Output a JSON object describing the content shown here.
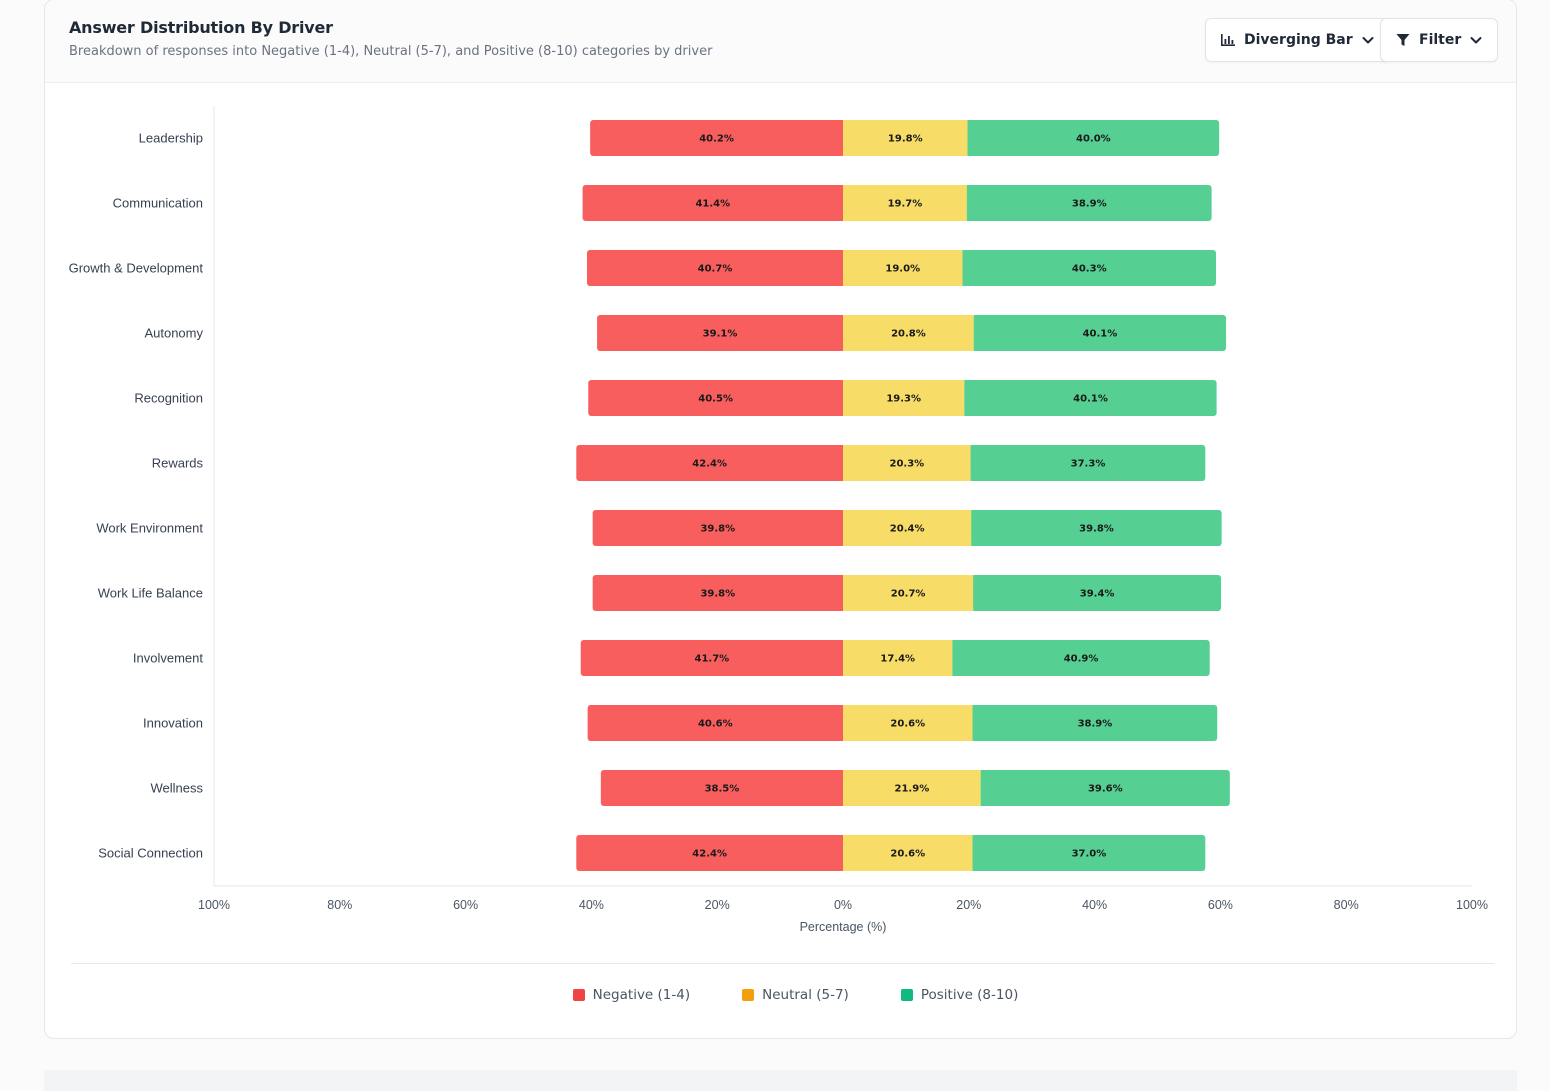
{
  "header": {
    "title": "Answer Distribution By Driver",
    "subtitle": "Breakdown of responses into Negative (1-4), Neutral (5-7), and Positive (8-10) categories by driver",
    "chart_type_button": "Diverging Bar",
    "filter_button": "Filter"
  },
  "colors": {
    "negative": "#f85e5e",
    "neutral": "#f7dd68",
    "positive": "#56cf93",
    "legend_negative": "#ef4444",
    "legend_neutral": "#f59e0b",
    "legend_positive": "#10b981"
  },
  "icons": {
    "chart_type": "bar-chart-icon",
    "filter": "funnel-icon",
    "dropdown": "chevron-down-icon"
  },
  "legend": {
    "negative": "Negative (1-4)",
    "neutral": "Neutral (5-7)",
    "positive": "Positive (8-10)"
  },
  "chart_data": {
    "type": "bar",
    "orientation": "horizontal-diverging",
    "categories": [
      "Leadership",
      "Communication",
      "Growth & Development",
      "Autonomy",
      "Recognition",
      "Rewards",
      "Work Environment",
      "Work Life Balance",
      "Involvement",
      "Innovation",
      "Wellness",
      "Social Connection"
    ],
    "series": [
      {
        "name": "Negative (1-4)",
        "values": [
          40.2,
          41.4,
          40.7,
          39.1,
          40.5,
          42.4,
          39.8,
          39.8,
          41.7,
          40.6,
          38.5,
          42.4
        ]
      },
      {
        "name": "Neutral (5-7)",
        "values": [
          19.8,
          19.7,
          19.0,
          20.8,
          19.3,
          20.3,
          20.4,
          20.7,
          17.4,
          20.6,
          21.9,
          20.6
        ]
      },
      {
        "name": "Positive (8-10)",
        "values": [
          40.0,
          38.9,
          40.3,
          40.1,
          40.1,
          37.3,
          39.8,
          39.4,
          40.9,
          38.9,
          39.6,
          37.0
        ]
      }
    ],
    "xlabel": "Percentage (%)",
    "ylabel": "",
    "xlim": [
      -100,
      100
    ],
    "x_ticks": [
      -100,
      -80,
      -60,
      -40,
      -20,
      0,
      20,
      40,
      60,
      80,
      100
    ],
    "x_tick_labels": [
      "100%",
      "80%",
      "60%",
      "40%",
      "20%",
      "0%",
      "20%",
      "40%",
      "60%",
      "80%",
      "100%"
    ],
    "grid": false,
    "legend_position": "bottom"
  }
}
